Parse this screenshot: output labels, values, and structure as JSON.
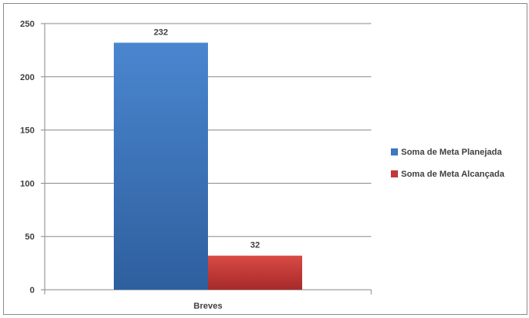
{
  "chart_data": {
    "type": "bar",
    "categories": [
      "Breves"
    ],
    "series": [
      {
        "name": "Soma de Meta Planejada",
        "values": [
          232
        ],
        "color": "#3f78c1"
      },
      {
        "name": "Soma de Meta Alcançada",
        "values": [
          32
        ],
        "color": "#c0393b"
      }
    ],
    "data_labels": [
      "232",
      "32"
    ],
    "y_ticks": [
      0,
      50,
      100,
      150,
      200,
      250
    ],
    "ylim": [
      0,
      250
    ],
    "grid": true,
    "legend_position": "right"
  }
}
